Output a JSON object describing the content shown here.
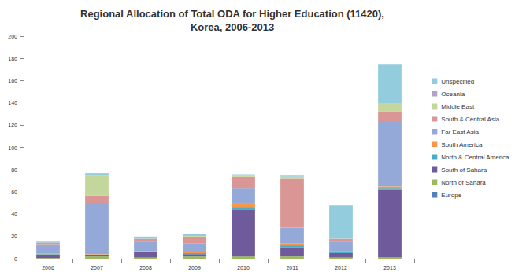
{
  "chart_data": {
    "type": "bar",
    "title": "Regional Allocation of Total ODA for Higher Education (11420),\nKorea, 2006-2013",
    "stacked": true,
    "grid": false,
    "legend": "right",
    "categories": [
      "2006",
      "2007",
      "2008",
      "2009",
      "2010",
      "2011",
      "2012",
      "2013"
    ],
    "ylim": [
      0,
      200
    ],
    "yticks": [
      0,
      20,
      40,
      60,
      80,
      100,
      120,
      140,
      160,
      180,
      200
    ],
    "series": [
      {
        "name": "Europe",
        "color": "#4f81bd",
        "values": [
          0,
          0,
          0,
          0,
          0,
          0,
          0,
          0
        ]
      },
      {
        "name": "North of Sahara",
        "color": "#9bbb59",
        "values": [
          0.5,
          2,
          1,
          2,
          2,
          2,
          1,
          1
        ]
      },
      {
        "name": "South of Sahara",
        "color": "#6f5a9c",
        "values": [
          3,
          1,
          5,
          2,
          42,
          8,
          4,
          61
        ]
      },
      {
        "name": "North & Central America",
        "color": "#4bacc6",
        "values": [
          0.5,
          0.5,
          0.5,
          1,
          2,
          2,
          1,
          1
        ]
      },
      {
        "name": "South America",
        "color": "#f79646",
        "values": [
          0.5,
          0.5,
          0.5,
          1,
          3,
          2,
          1,
          2
        ]
      },
      {
        "name": "Far East Asia",
        "color": "#95a9d8",
        "values": [
          8,
          46,
          8,
          8,
          14,
          14,
          8,
          59
        ]
      },
      {
        "name": "South & Central Asia",
        "color": "#d99694",
        "values": [
          2,
          7,
          3,
          6,
          11,
          44,
          3,
          8
        ]
      },
      {
        "name": "Middle East",
        "color": "#c3d69b",
        "values": [
          0,
          18,
          0,
          0.5,
          1,
          2,
          0,
          8
        ]
      },
      {
        "name": "Oceania",
        "color": "#b3a2c7",
        "values": [
          0,
          0,
          0,
          0,
          0,
          0,
          0,
          0
        ]
      },
      {
        "name": "Unspecified",
        "color": "#93cddd",
        "values": [
          1,
          1.5,
          2,
          1.5,
          0.5,
          1,
          30,
          35
        ]
      }
    ]
  }
}
